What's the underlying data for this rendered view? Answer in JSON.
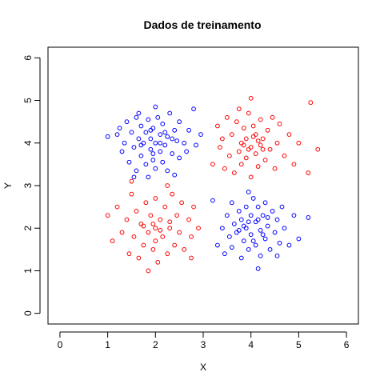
{
  "chart_data": {
    "type": "scatter",
    "title": "Dados de treinamento",
    "xlabel": "X",
    "ylabel": "Y",
    "xlim": [
      -0.25,
      6.25
    ],
    "ylim": [
      -0.25,
      6.25
    ],
    "x_ticks": [
      0,
      1,
      2,
      3,
      4,
      5,
      6
    ],
    "y_ticks": [
      0,
      1,
      2,
      3,
      4,
      5,
      6
    ],
    "x_tick_labels": [
      "0",
      "1",
      "2",
      "3",
      "4",
      "5",
      "6"
    ],
    "y_tick_labels": [
      "0",
      "1",
      "2",
      "3",
      "4",
      "5",
      "6"
    ],
    "grid": false,
    "legend": "none",
    "marker": "open-circle",
    "series": [
      {
        "color": "#0000FF",
        "points": [
          [
            1.0,
            4.15
          ],
          [
            1.2,
            4.2
          ],
          [
            1.25,
            4.35
          ],
          [
            1.3,
            3.8
          ],
          [
            1.35,
            4.0
          ],
          [
            1.4,
            4.5
          ],
          [
            1.45,
            3.55
          ],
          [
            1.5,
            4.25
          ],
          [
            1.55,
            3.9
          ],
          [
            1.6,
            4.6
          ],
          [
            1.6,
            3.35
          ],
          [
            1.65,
            4.1
          ],
          [
            1.7,
            3.7
          ],
          [
            1.7,
            4.4
          ],
          [
            1.75,
            4.0
          ],
          [
            1.8,
            3.5
          ],
          [
            1.8,
            4.25
          ],
          [
            1.85,
            4.55
          ],
          [
            1.9,
            3.85
          ],
          [
            1.9,
            4.1
          ],
          [
            1.95,
            3.6
          ],
          [
            1.95,
            4.35
          ],
          [
            2.0,
            4.0
          ],
          [
            2.0,
            3.4
          ],
          [
            2.05,
            4.6
          ],
          [
            2.1,
            3.8
          ],
          [
            2.1,
            4.2
          ],
          [
            2.15,
            3.55
          ],
          [
            2.15,
            4.45
          ],
          [
            2.2,
            3.95
          ],
          [
            2.25,
            4.15
          ],
          [
            2.25,
            3.35
          ],
          [
            2.3,
            4.7
          ],
          [
            2.35,
            3.75
          ],
          [
            2.4,
            4.3
          ],
          [
            2.45,
            4.05
          ],
          [
            2.5,
            3.65
          ],
          [
            2.5,
            4.5
          ],
          [
            2.6,
            4.0
          ],
          [
            2.65,
            3.8
          ],
          [
            2.7,
            4.3
          ],
          [
            2.8,
            4.8
          ],
          [
            2.85,
            3.95
          ],
          [
            2.95,
            4.2
          ],
          [
            1.55,
            3.2
          ],
          [
            1.65,
            4.7
          ],
          [
            2.0,
            4.85
          ],
          [
            2.4,
            3.25
          ],
          [
            1.85,
            3.2
          ],
          [
            2.2,
            4.25
          ],
          [
            1.9,
            4.3
          ],
          [
            2.1,
            4.0
          ],
          [
            1.7,
            3.95
          ],
          [
            2.35,
            4.1
          ],
          [
            1.95,
            3.75
          ],
          [
            3.3,
            1.6
          ],
          [
            3.4,
            2.0
          ],
          [
            3.45,
            1.4
          ],
          [
            3.5,
            2.3
          ],
          [
            3.55,
            1.8
          ],
          [
            3.6,
            2.6
          ],
          [
            3.6,
            1.55
          ],
          [
            3.65,
            2.1
          ],
          [
            3.7,
            1.9
          ],
          [
            3.75,
            2.4
          ],
          [
            3.8,
            1.3
          ],
          [
            3.8,
            2.2
          ],
          [
            3.85,
            1.7
          ],
          [
            3.9,
            2.5
          ],
          [
            3.9,
            2.0
          ],
          [
            3.95,
            1.5
          ],
          [
            4.0,
            2.3
          ],
          [
            4.0,
            1.85
          ],
          [
            4.05,
            2.7
          ],
          [
            4.1,
            1.6
          ],
          [
            4.1,
            2.15
          ],
          [
            4.15,
            2.5
          ],
          [
            4.2,
            1.95
          ],
          [
            4.2,
            1.35
          ],
          [
            4.25,
            2.3
          ],
          [
            4.3,
            1.75
          ],
          [
            4.3,
            2.6
          ],
          [
            4.35,
            2.05
          ],
          [
            4.4,
            1.5
          ],
          [
            4.45,
            2.4
          ],
          [
            4.5,
            1.9
          ],
          [
            4.55,
            2.2
          ],
          [
            4.6,
            1.65
          ],
          [
            4.65,
            2.5
          ],
          [
            4.7,
            2.0
          ],
          [
            4.8,
            1.6
          ],
          [
            4.9,
            2.3
          ],
          [
            5.0,
            1.75
          ],
          [
            5.2,
            2.25
          ],
          [
            3.2,
            2.65
          ],
          [
            4.15,
            1.05
          ],
          [
            4.55,
            1.35
          ],
          [
            3.95,
            2.85
          ],
          [
            4.05,
            1.7
          ],
          [
            3.85,
            2.05
          ],
          [
            4.25,
            1.85
          ],
          [
            4.15,
            2.2
          ],
          [
            3.95,
            2.15
          ],
          [
            4.35,
            2.25
          ],
          [
            3.75,
            1.95
          ]
        ]
      },
      {
        "color": "#FF0000",
        "points": [
          [
            1.0,
            2.3
          ],
          [
            1.1,
            1.7
          ],
          [
            1.2,
            2.5
          ],
          [
            1.3,
            1.9
          ],
          [
            1.4,
            2.2
          ],
          [
            1.45,
            1.4
          ],
          [
            1.5,
            2.8
          ],
          [
            1.55,
            1.8
          ],
          [
            1.6,
            2.4
          ],
          [
            1.65,
            1.3
          ],
          [
            1.7,
            2.1
          ],
          [
            1.75,
            1.6
          ],
          [
            1.8,
            2.6
          ],
          [
            1.85,
            1.9
          ],
          [
            1.9,
            2.3
          ],
          [
            1.95,
            1.5
          ],
          [
            2.0,
            2.0
          ],
          [
            2.0,
            2.7
          ],
          [
            2.05,
            1.2
          ],
          [
            2.1,
            2.2
          ],
          [
            2.15,
            1.8
          ],
          [
            2.2,
            2.5
          ],
          [
            2.25,
            1.4
          ],
          [
            2.3,
            2.0
          ],
          [
            2.35,
            2.8
          ],
          [
            2.4,
            1.6
          ],
          [
            2.45,
            2.3
          ],
          [
            2.5,
            1.9
          ],
          [
            2.55,
            2.6
          ],
          [
            2.6,
            1.5
          ],
          [
            2.7,
            2.2
          ],
          [
            2.75,
            1.8
          ],
          [
            2.8,
            2.5
          ],
          [
            2.9,
            2.0
          ],
          [
            1.5,
            3.1
          ],
          [
            1.85,
            1.0
          ],
          [
            2.25,
            3.0
          ],
          [
            2.75,
            1.3
          ],
          [
            1.95,
            2.1
          ],
          [
            2.1,
            1.95
          ],
          [
            1.75,
            2.05
          ],
          [
            2.3,
            2.15
          ],
          [
            2.0,
            1.7
          ],
          [
            3.2,
            3.5
          ],
          [
            3.3,
            4.4
          ],
          [
            3.35,
            3.9
          ],
          [
            3.4,
            4.1
          ],
          [
            3.45,
            3.4
          ],
          [
            3.5,
            4.6
          ],
          [
            3.55,
            3.7
          ],
          [
            3.6,
            4.2
          ],
          [
            3.65,
            3.3
          ],
          [
            3.7,
            4.5
          ],
          [
            3.75,
            3.8
          ],
          [
            3.8,
            4.0
          ],
          [
            3.8,
            3.5
          ],
          [
            3.85,
            4.35
          ],
          [
            3.9,
            3.65
          ],
          [
            3.9,
            4.1
          ],
          [
            3.95,
            4.7
          ],
          [
            4.0,
            3.9
          ],
          [
            4.0,
            3.2
          ],
          [
            4.05,
            4.4
          ],
          [
            4.1,
            3.75
          ],
          [
            4.1,
            4.2
          ],
          [
            4.15,
            3.45
          ],
          [
            4.2,
            4.55
          ],
          [
            4.2,
            3.95
          ],
          [
            4.25,
            4.1
          ],
          [
            4.3,
            3.6
          ],
          [
            4.35,
            4.3
          ],
          [
            4.4,
            3.85
          ],
          [
            4.45,
            4.6
          ],
          [
            4.5,
            3.4
          ],
          [
            4.55,
            4.0
          ],
          [
            4.6,
            4.45
          ],
          [
            4.7,
            3.7
          ],
          [
            4.8,
            4.2
          ],
          [
            4.9,
            3.5
          ],
          [
            5.0,
            4.0
          ],
          [
            5.2,
            3.3
          ],
          [
            5.25,
            4.95
          ],
          [
            5.4,
            3.85
          ],
          [
            4.0,
            5.05
          ],
          [
            3.75,
            4.8
          ],
          [
            4.15,
            4.05
          ],
          [
            3.95,
            3.85
          ],
          [
            4.25,
            3.85
          ],
          [
            4.05,
            4.15
          ],
          [
            3.85,
            3.95
          ]
        ]
      }
    ]
  }
}
